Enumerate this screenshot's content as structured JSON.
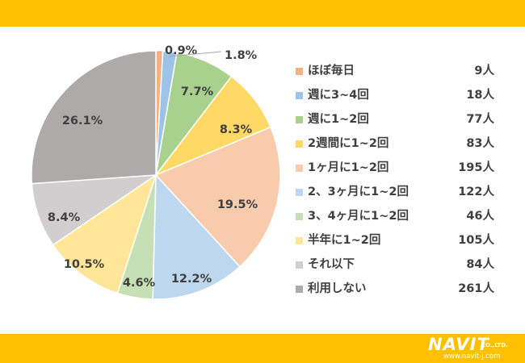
{
  "colors": {
    "band": "#ffc000",
    "text": "#3f3f3f",
    "leader_line": "#a6a6a6"
  },
  "logo": {
    "main": "NAVIT",
    "suffix": "CO.,LTD.",
    "url": "www.navit-j.com"
  },
  "chart_data": {
    "type": "pie",
    "title": "",
    "start_angle_deg": 0,
    "direction": "clockwise",
    "legend_position": "right",
    "slices": [
      {
        "label": "ほぼ毎日",
        "count": "9人",
        "percent_label": "0.9%",
        "value": 0.9,
        "color": "#f4b183"
      },
      {
        "label": "週に3~4回",
        "count": "18人",
        "percent_label": "1.8%",
        "value": 1.8,
        "color": "#9dc3e6"
      },
      {
        "label": "週に1~2回",
        "count": "77人",
        "percent_label": "7.7%",
        "value": 7.7,
        "color": "#a9d18e"
      },
      {
        "label": "2週間に1~2回",
        "count": "83人",
        "percent_label": "8.3%",
        "value": 8.3,
        "color": "#ffd966"
      },
      {
        "label": "1ヶ月に1~2回",
        "count": "195人",
        "percent_label": "19.5%",
        "value": 19.5,
        "color": "#f8cbad"
      },
      {
        "label": "2、3ヶ月に1~2回",
        "count": "122人",
        "percent_label": "12.2%",
        "value": 12.2,
        "color": "#bdd7ee"
      },
      {
        "label": "3、4ヶ月に1~2回",
        "count": "46人",
        "percent_label": "4.6%",
        "value": 4.6,
        "color": "#c5e0b4"
      },
      {
        "label": "半年に1~2回",
        "count": "105人",
        "percent_label": "10.5%",
        "value": 10.5,
        "color": "#ffe699"
      },
      {
        "label": "それ以下",
        "count": "84人",
        "percent_label": "8.4%",
        "value": 8.4,
        "color": "#d0cece"
      },
      {
        "label": "利用しない",
        "count": "261人",
        "percent_label": "26.1%",
        "value": 26.1,
        "color": "#aeaaaa"
      }
    ]
  }
}
